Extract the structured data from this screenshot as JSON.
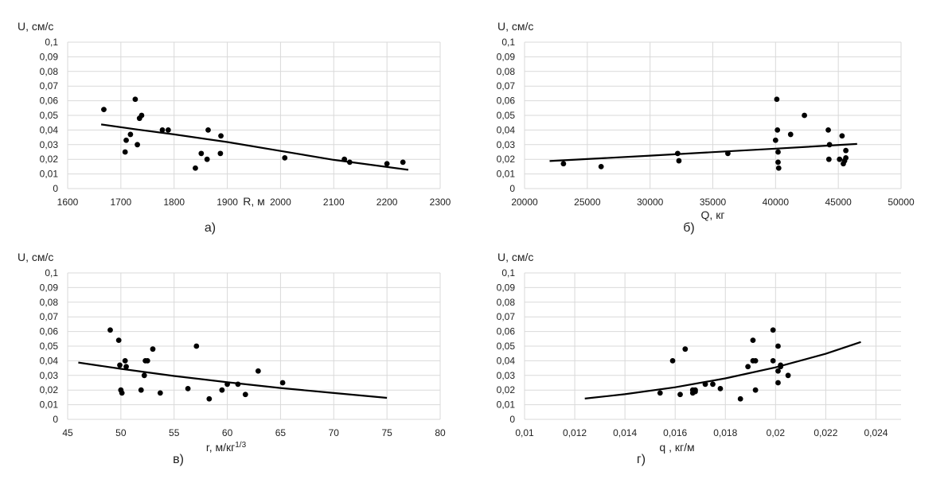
{
  "chart_data": [
    {
      "type": "scatter",
      "panel_label": "а)",
      "ylabel": "U, см/с",
      "xlabel": "R, м",
      "xlim": [
        1600,
        2300
      ],
      "ylim": [
        0,
        0.1
      ],
      "x_ticks": [
        1600,
        1700,
        1800,
        1900,
        2000,
        2100,
        2200,
        2300
      ],
      "x_tick_labels": [
        "1600",
        "1700",
        "1800",
        "1900",
        "2000",
        "2100",
        "2200",
        "2300"
      ],
      "y_ticks": [
        0,
        0.01,
        0.02,
        0.03,
        0.04,
        0.05,
        0.06,
        0.07,
        0.08,
        0.09,
        0.1
      ],
      "y_tick_labels": [
        "0",
        "0,01",
        "0,02",
        "0,03",
        "0,04",
        "0,05",
        "0,06",
        "0,07",
        "0,08",
        "0,09",
        "0,1"
      ],
      "grid": true,
      "series": [
        {
          "x": [
            1668,
            1708,
            1710,
            1718,
            1727,
            1731,
            1735,
            1739,
            1778,
            1789,
            1840,
            1851,
            1862,
            1864,
            1887,
            1888,
            2008,
            2120,
            2130,
            2200,
            2230
          ],
          "y": [
            0.054,
            0.025,
            0.033,
            0.037,
            0.061,
            0.03,
            0.048,
            0.05,
            0.04,
            0.04,
            0.014,
            0.024,
            0.02,
            0.04,
            0.024,
            0.036,
            0.021,
            0.02,
            0.018,
            0.017,
            0.018
          ]
        }
      ],
      "trendline": {
        "x": [
          1663,
          1730,
          1800,
          1900,
          2000,
          2100,
          2240
        ],
        "y": [
          0.0438,
          0.0404,
          0.037,
          0.0318,
          0.0257,
          0.0196,
          0.0128
        ]
      }
    },
    {
      "type": "scatter",
      "panel_label": "б)",
      "ylabel": "U, см/с",
      "xlabel": "Q, кг",
      "xlim": [
        20000,
        50000
      ],
      "ylim": [
        0,
        0.1
      ],
      "x_ticks": [
        20000,
        25000,
        30000,
        35000,
        40000,
        45000,
        50000
      ],
      "x_tick_labels": [
        "20000",
        "25000",
        "30000",
        "35000",
        "40000",
        "45000",
        "50000"
      ],
      "y_ticks": [
        0,
        0.01,
        0.02,
        0.03,
        0.04,
        0.05,
        0.06,
        0.07,
        0.08,
        0.09,
        0.1
      ],
      "y_tick_labels": [
        "0",
        "0,01",
        "0,02",
        "0,03",
        "0,04",
        "0,05",
        "0,06",
        "0,07",
        "0,08",
        "0,09",
        "0,1"
      ],
      "grid": true,
      "series": [
        {
          "x": [
            23100,
            26100,
            32200,
            32300,
            36200,
            40000,
            40100,
            40150,
            40200,
            40200,
            40250,
            41200,
            42300,
            44200,
            44300,
            44250,
            45100,
            45300,
            45400,
            45500,
            45600,
            45600
          ],
          "y": [
            0.017,
            0.015,
            0.024,
            0.019,
            0.024,
            0.033,
            0.061,
            0.04,
            0.025,
            0.018,
            0.014,
            0.037,
            0.05,
            0.04,
            0.03,
            0.02,
            0.02,
            0.036,
            0.017,
            0.019,
            0.021,
            0.026
          ]
        }
      ],
      "trendline": {
        "x": [
          22000,
          30000,
          40000,
          46500
        ],
        "y": [
          0.0188,
          0.0225,
          0.0273,
          0.0305
        ]
      }
    },
    {
      "type": "scatter",
      "panel_label": "в)",
      "ylabel": "U, см/с",
      "xlabel": "r, м/кг",
      "xlabel_superscript": "1/3",
      "xlim": [
        45,
        80
      ],
      "ylim": [
        0,
        0.1
      ],
      "x_ticks": [
        45,
        50,
        55,
        60,
        65,
        70,
        75,
        80
      ],
      "x_tick_labels": [
        "45",
        "50",
        "55",
        "60",
        "65",
        "70",
        "75",
        "80"
      ],
      "y_ticks": [
        0,
        0.01,
        0.02,
        0.03,
        0.04,
        0.05,
        0.06,
        0.07,
        0.08,
        0.09,
        0.1
      ],
      "y_tick_labels": [
        "0",
        "0,01",
        "0,02",
        "0,03",
        "0,04",
        "0,05",
        "0,06",
        "0,07",
        "0,08",
        "0,09",
        "0,1"
      ],
      "grid": true,
      "series": [
        {
          "x": [
            49.0,
            49.8,
            49.9,
            50.0,
            50.1,
            50.4,
            50.5,
            51.9,
            52.2,
            52.3,
            52.5,
            53.0,
            53.7,
            56.3,
            57.1,
            58.3,
            59.5,
            60.0,
            61.0,
            61.7,
            62.9,
            65.2
          ],
          "y": [
            0.061,
            0.054,
            0.037,
            0.02,
            0.018,
            0.04,
            0.036,
            0.02,
            0.03,
            0.04,
            0.04,
            0.048,
            0.018,
            0.021,
            0.05,
            0.014,
            0.02,
            0.024,
            0.024,
            0.017,
            0.033,
            0.025
          ]
        }
      ],
      "trendline": {
        "x": [
          46,
          50,
          55,
          60,
          65,
          70,
          75
        ],
        "y": [
          0.0388,
          0.0345,
          0.0296,
          0.0253,
          0.0214,
          0.018,
          0.0147
        ]
      }
    },
    {
      "type": "scatter",
      "panel_label": "г)",
      "ylabel": "U, см/с",
      "xlabel": "q , кг/м",
      "xlim": [
        0.01,
        0.025
      ],
      "ylim": [
        0,
        0.1
      ],
      "x_ticks": [
        0.01,
        0.012,
        0.014,
        0.016,
        0.018,
        0.02,
        0.022,
        0.024
      ],
      "x_tick_labels": [
        "0,01",
        "0,012",
        "0,014",
        "0,016",
        "0,018",
        "0,02",
        "0,022",
        "0,024"
      ],
      "y_ticks": [
        0,
        0.01,
        0.02,
        0.03,
        0.04,
        0.05,
        0.06,
        0.07,
        0.08,
        0.09,
        0.1
      ],
      "y_tick_labels": [
        "0",
        "0,01",
        "0,02",
        "0,03",
        "0,04",
        "0,05",
        "0,06",
        "0,07",
        "0,08",
        "0,09",
        "0,1"
      ],
      "grid": true,
      "series": [
        {
          "x": [
            0.0154,
            0.0159,
            0.0162,
            0.0164,
            0.0167,
            0.0167,
            0.0168,
            0.0168,
            0.0172,
            0.0175,
            0.0178,
            0.0186,
            0.0189,
            0.0191,
            0.0191,
            0.0192,
            0.0192,
            0.0199,
            0.0199,
            0.0201,
            0.0201,
            0.0201,
            0.0202,
            0.0202,
            0.0205
          ],
          "y": [
            0.018,
            0.04,
            0.017,
            0.048,
            0.02,
            0.018,
            0.019,
            0.02,
            0.024,
            0.024,
            0.021,
            0.014,
            0.036,
            0.054,
            0.04,
            0.02,
            0.04,
            0.061,
            0.04,
            0.05,
            0.033,
            0.025,
            0.037,
            0.036,
            0.03
          ]
        }
      ],
      "trendline": {
        "x": [
          0.0124,
          0.014,
          0.016,
          0.018,
          0.02,
          0.022,
          0.0234
        ],
        "y": [
          0.0142,
          0.0172,
          0.0219,
          0.028,
          0.0355,
          0.0448,
          0.0528
        ]
      }
    }
  ]
}
